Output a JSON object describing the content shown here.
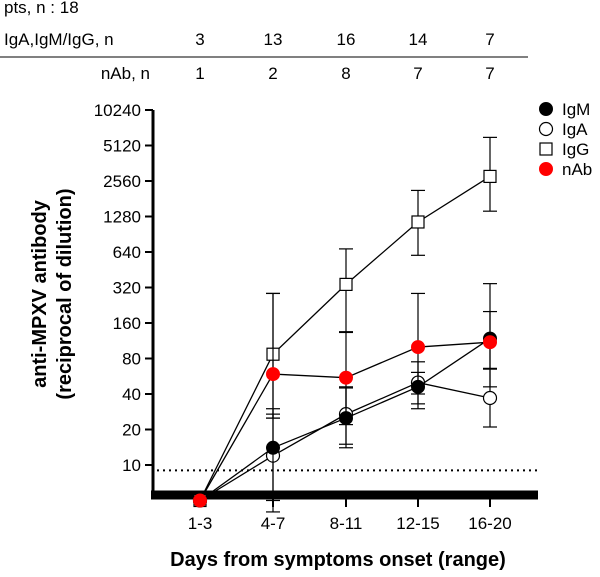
{
  "header": {
    "patients_label": "pts, n : 18",
    "rows": [
      {
        "label": "IgA,IgM/IgG, n",
        "values": [
          "3",
          "13",
          "16",
          "14",
          "7"
        ]
      },
      {
        "label": "nAb, n",
        "values": [
          "1",
          "2",
          "8",
          "7",
          "7"
        ]
      }
    ]
  },
  "chart_data": {
    "type": "line",
    "xlabel": "Days from symptoms onset (range)",
    "ylabel_line1": "anti-MPXV antibody",
    "ylabel_line2": "(reciprocal of dilution)",
    "yscale": "log2",
    "ylim": [
      5,
      10240
    ],
    "yticks": [
      10,
      20,
      40,
      80,
      160,
      320,
      640,
      1280,
      2560,
      5120,
      10240
    ],
    "ytick_labels": [
      "10",
      "20",
      "40",
      "80",
      "160",
      "320",
      "640",
      "1280",
      "2560",
      "5120",
      "10240"
    ],
    "categories": [
      "1-3",
      "4-7",
      "8-11",
      "12-15",
      "16-20"
    ],
    "cutoff": 9,
    "grid": false,
    "legend_position": "top-right",
    "series": [
      {
        "name": "IgM",
        "marker": "filled-circle",
        "color": "#000000",
        "values": [
          5,
          14,
          25,
          46,
          118
        ],
        "err_low": [
          5,
          5,
          15,
          33,
          65
        ],
        "err_high": [
          5,
          27,
          45,
          61,
          200
        ]
      },
      {
        "name": "IgA",
        "marker": "open-circle",
        "color": "#000000",
        "values": [
          5,
          12,
          27,
          50,
          37
        ],
        "err_low": [
          5,
          4,
          14,
          30,
          21
        ],
        "err_high": [
          5,
          30,
          46,
          75,
          66
        ]
      },
      {
        "name": "IgG",
        "marker": "open-square",
        "color": "#000000",
        "values": [
          5,
          87,
          340,
          1150,
          2800
        ],
        "err_low": [
          5,
          25,
          133,
          600,
          1420
        ],
        "err_high": [
          5,
          285,
          680,
          2130,
          6000
        ]
      },
      {
        "name": "nAb",
        "marker": "filled-circle",
        "color": "#ff0000",
        "values": [
          5,
          59,
          55,
          100,
          110
        ],
        "err_low": [
          5,
          25,
          22,
          40,
          46
        ],
        "err_high": [
          5,
          285,
          135,
          285,
          345
        ]
      }
    ]
  }
}
